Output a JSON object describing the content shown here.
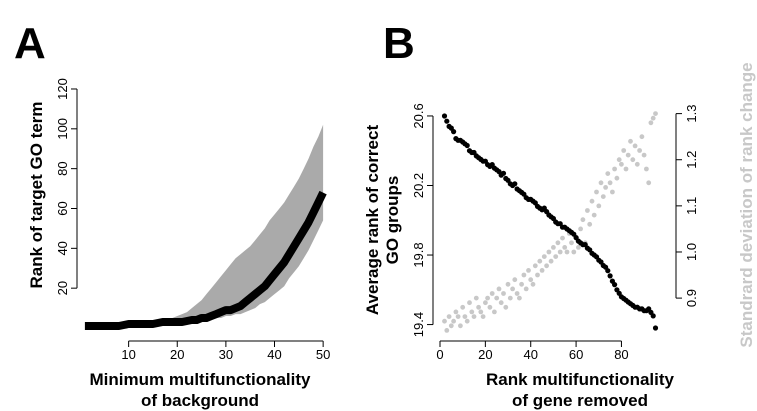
{
  "chart_data": [
    {
      "type": "line",
      "panel_label": "A",
      "xlabel": [
        "Minimum multifunctionality",
        "of background"
      ],
      "ylabel": "Rank of target GO term",
      "xlim": [
        0,
        51
      ],
      "ylim": [
        0,
        122
      ],
      "xticks": [
        10,
        20,
        30,
        40,
        50
      ],
      "yticks": [
        20,
        40,
        60,
        80,
        100,
        120
      ],
      "grid": false,
      "series": [
        {
          "x": [
            1,
            2,
            3,
            4,
            5,
            6,
            7,
            8,
            9,
            10,
            11,
            12,
            13,
            14,
            15,
            16,
            17,
            18,
            19,
            20,
            21,
            22,
            23,
            24,
            25,
            26,
            27,
            28,
            29,
            30,
            31,
            32,
            33,
            34,
            35,
            36,
            37,
            38,
            39,
            40,
            41,
            42,
            43,
            44,
            45,
            46,
            47,
            48,
            49,
            50
          ],
          "values": [
            1,
            1,
            1,
            1,
            1,
            1,
            1,
            1,
            1.5,
            2,
            2,
            2,
            2,
            2,
            2,
            2.5,
            3,
            3,
            3,
            3,
            3,
            3.5,
            4,
            4,
            5,
            5,
            6,
            7,
            8,
            9,
            9,
            10,
            11,
            13,
            15,
            17,
            19,
            21,
            24,
            27,
            30,
            33,
            37,
            41,
            45,
            49,
            53,
            58,
            63,
            68
          ],
          "upper": [
            1,
            1,
            1,
            1,
            1,
            1,
            1,
            1,
            1.5,
            2,
            2,
            2,
            2.5,
            3,
            3,
            3.5,
            4,
            4,
            5,
            6,
            7,
            8,
            10,
            12,
            14,
            17,
            20,
            23,
            26,
            29,
            32,
            35,
            37,
            39,
            41,
            44,
            47,
            50,
            54,
            57,
            60,
            63,
            67,
            71,
            75,
            80,
            85,
            91,
            96,
            102
          ],
          "lower": [
            1,
            1,
            1,
            1,
            1,
            1,
            1,
            1,
            1.5,
            2,
            2,
            2,
            2,
            2,
            2,
            2,
            2,
            2.5,
            2.5,
            2.5,
            2.5,
            2.5,
            3,
            3,
            3,
            4,
            4,
            5,
            5,
            6,
            6,
            7,
            7,
            8,
            9,
            10,
            12,
            13,
            15,
            17,
            19,
            21,
            25,
            28,
            31,
            35,
            39,
            44,
            49,
            54
          ]
        }
      ]
    },
    {
      "type": "scatter",
      "panel_label": "B",
      "xlabel": [
        "Rank multifunctionality",
        "of gene removed"
      ],
      "ylabel": [
        "Average rank of correct",
        "GO groups"
      ],
      "y2label": "Standrard deviation of rank change",
      "xlim": [
        0,
        97
      ],
      "ylim": [
        19.34,
        20.64
      ],
      "y2lim": [
        0.82,
        1.31
      ],
      "xticks": [
        0,
        20,
        40,
        60,
        80
      ],
      "yticks": [
        19.4,
        19.8,
        20.2,
        20.6
      ],
      "y2ticks": [
        0.9,
        1.0,
        1.1,
        1.2,
        1.3
      ],
      "colors": {
        "primary": "#000000",
        "secondary": "#c8c8c8"
      },
      "series": [
        {
          "axis": "left",
          "x": [
            2,
            3,
            4,
            5,
            6,
            7,
            8,
            9,
            10,
            11,
            12,
            13,
            14,
            15,
            16,
            17,
            18,
            19,
            20,
            21,
            22,
            23,
            24,
            25,
            26,
            27,
            28,
            29,
            30,
            31,
            32,
            33,
            34,
            35,
            36,
            37,
            38,
            39,
            40,
            41,
            42,
            43,
            44,
            45,
            46,
            47,
            48,
            49,
            50,
            51,
            52,
            53,
            54,
            55,
            56,
            57,
            58,
            59,
            60,
            61,
            62,
            63,
            64,
            65,
            66,
            67,
            68,
            69,
            70,
            71,
            72,
            73,
            74,
            75,
            76,
            77,
            78,
            79,
            80,
            81,
            82,
            83,
            84,
            85,
            86,
            87,
            88,
            89,
            90,
            91,
            92,
            93,
            94,
            95
          ],
          "values": [
            20.6,
            20.57,
            20.54,
            20.53,
            20.51,
            20.47,
            20.46,
            20.46,
            20.45,
            20.44,
            20.43,
            20.4,
            20.39,
            20.39,
            20.37,
            20.36,
            20.35,
            20.34,
            20.34,
            20.32,
            20.31,
            20.32,
            20.3,
            20.29,
            20.28,
            20.26,
            20.27,
            20.24,
            20.23,
            20.21,
            20.2,
            20.21,
            20.18,
            20.17,
            20.16,
            20.15,
            20.13,
            20.12,
            20.12,
            20.11,
            20.1,
            20.08,
            20.07,
            20.06,
            20.07,
            20.05,
            20.03,
            20.02,
            20.01,
            19.99,
            19.98,
            19.98,
            19.96,
            19.96,
            19.95,
            19.94,
            19.93,
            19.92,
            19.9,
            19.88,
            19.87,
            19.86,
            19.86,
            19.84,
            19.83,
            19.81,
            19.8,
            19.79,
            19.77,
            19.76,
            19.74,
            19.73,
            19.71,
            19.68,
            19.65,
            19.63,
            19.6,
            19.58,
            19.56,
            19.55,
            19.54,
            19.53,
            19.52,
            19.51,
            19.5,
            19.5,
            19.49,
            19.49,
            19.48,
            19.48,
            19.49,
            19.47,
            19.45,
            19.38
          ]
        },
        {
          "axis": "right",
          "x": [
            2,
            3,
            4,
            5,
            6,
            7,
            8,
            9,
            10,
            11,
            12,
            13,
            14,
            15,
            16,
            17,
            18,
            19,
            20,
            21,
            22,
            23,
            24,
            25,
            26,
            27,
            28,
            29,
            30,
            31,
            32,
            33,
            34,
            35,
            36,
            37,
            38,
            39,
            40,
            41,
            42,
            43,
            44,
            45,
            46,
            47,
            48,
            49,
            50,
            51,
            52,
            53,
            54,
            55,
            56,
            57,
            58,
            59,
            60,
            61,
            62,
            63,
            64,
            65,
            66,
            67,
            68,
            69,
            70,
            71,
            72,
            73,
            74,
            75,
            76,
            77,
            78,
            79,
            80,
            81,
            82,
            83,
            84,
            85,
            86,
            87,
            88,
            89,
            90,
            91,
            92,
            93,
            94,
            95
          ],
          "values": [
            0.85,
            0.83,
            0.86,
            0.84,
            0.85,
            0.87,
            0.86,
            0.84,
            0.88,
            0.86,
            0.85,
            0.89,
            0.87,
            0.86,
            0.9,
            0.88,
            0.87,
            0.86,
            0.89,
            0.9,
            0.88,
            0.91,
            0.87,
            0.9,
            0.92,
            0.89,
            0.91,
            0.88,
            0.93,
            0.9,
            0.92,
            0.94,
            0.91,
            0.9,
            0.93,
            0.95,
            0.92,
            0.96,
            0.94,
            0.93,
            0.97,
            0.95,
            0.98,
            0.96,
            0.99,
            0.97,
            1.0,
            0.98,
            1.01,
            0.99,
            1.02,
            1.0,
            1.03,
            1.01,
            1.0,
            1.04,
            1.02,
            1.0,
            1.03,
            1.01,
            1.05,
            1.07,
            1.02,
            1.09,
            1.06,
            1.11,
            1.08,
            1.13,
            1.1,
            1.15,
            1.12,
            1.14,
            1.17,
            1.15,
            1.13,
            1.18,
            1.16,
            1.2,
            1.19,
            1.22,
            1.18,
            1.21,
            1.24,
            1.2,
            1.23,
            1.19,
            1.22,
            1.25,
            1.21,
            1.18,
            1.15,
            1.28,
            1.29,
            1.3
          ]
        }
      ]
    }
  ]
}
